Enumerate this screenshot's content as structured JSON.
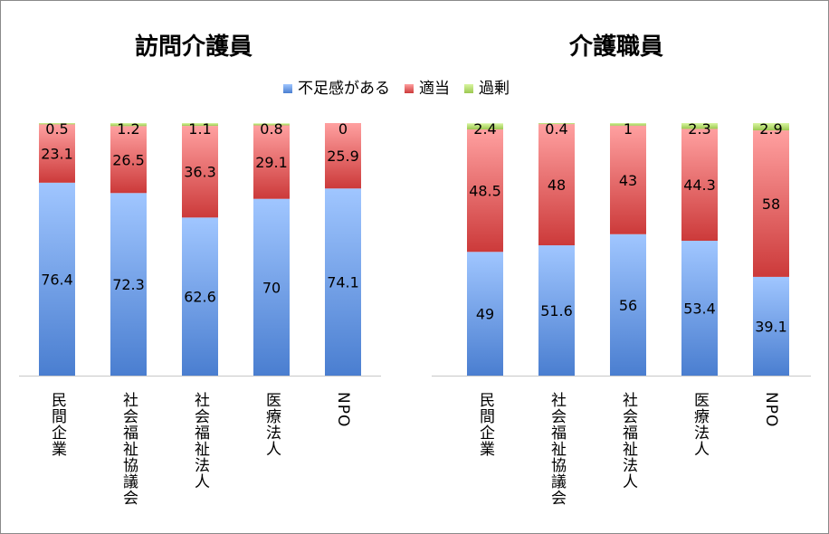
{
  "chart_data": [
    {
      "type": "bar",
      "stacked": true,
      "title": "訪問介護員",
      "categories": [
        "民間企業",
        "社会福祉協議会",
        "社会福祉法人",
        "医療法人",
        "NPO"
      ],
      "series": [
        {
          "name": "不足感がある",
          "values": [
            76.4,
            72.3,
            62.6,
            70,
            74.1
          ]
        },
        {
          "name": "適当",
          "values": [
            23.1,
            26.5,
            36.3,
            29.1,
            25.9
          ]
        },
        {
          "name": "過剰",
          "values": [
            0.5,
            1.2,
            1.1,
            0.8,
            0
          ]
        }
      ],
      "ylim": [
        0,
        100
      ],
      "grid": false,
      "legend": "top"
    },
    {
      "type": "bar",
      "stacked": true,
      "title": "介護職員",
      "categories": [
        "民間企業",
        "社会福祉協議会",
        "社会福祉法人",
        "医療法人",
        "NPO"
      ],
      "series": [
        {
          "name": "不足感がある",
          "values": [
            49,
            51.6,
            56,
            53.4,
            39.1
          ]
        },
        {
          "name": "適当",
          "values": [
            48.5,
            48,
            43,
            44.3,
            58
          ]
        },
        {
          "name": "過剰",
          "values": [
            2.4,
            0.4,
            1,
            2.3,
            2.9
          ]
        }
      ],
      "ylim": [
        0,
        100
      ],
      "grid": false,
      "legend": "top"
    }
  ],
  "legend": [
    "不足感がある",
    "適当",
    "過剰"
  ],
  "colors": {
    "shortage": [
      "#a0c6ff",
      "#4a7ed0"
    ],
    "adequate": [
      "#ffa0a0",
      "#cc3a3a"
    ],
    "excess": [
      "#d8f5a0",
      "#9cc850"
    ]
  }
}
